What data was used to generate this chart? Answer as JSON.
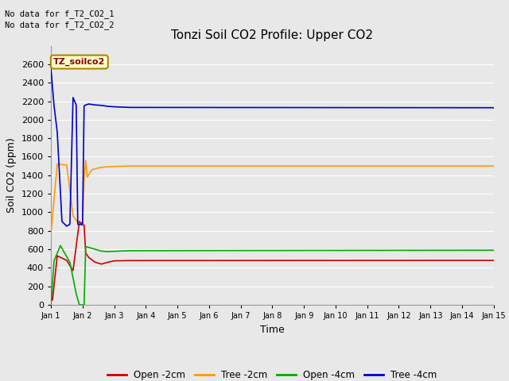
{
  "title": "Tonzi Soil CO2 Profile: Upper CO2",
  "xlabel": "Time",
  "ylabel": "Soil CO2 (ppm)",
  "no_data_text_1": "No data for f_T2_CO2_1",
  "no_data_text_2": "No data for f_T2_CO2_2",
  "annotation_box_text": "TZ_soilco2",
  "annotation_box_color": "#ffffcc",
  "annotation_box_border": "#aa8800",
  "annotation_text_color": "#880000",
  "ylim": [
    0,
    2800
  ],
  "xlim_days": [
    0,
    14
  ],
  "x_tick_labels": [
    "Jan 1",
    "Jan 2",
    "Jan 3",
    "Jan 4",
    "Jan 5",
    "Jan 6",
    "Jan 7",
    "Jan 8",
    "Jan 9",
    "Jan 10",
    "Jan 11",
    "Jan 12",
    "Jan 13",
    "Jan 14",
    "Jan 15"
  ],
  "background_color": "#e8e8e8",
  "plot_bg_color": "#e8e8e8",
  "grid_color": "#ffffff",
  "series": {
    "open_2cm": {
      "color": "#cc0000",
      "label": "Open -2cm",
      "data": [
        [
          0.0,
          100
        ],
        [
          0.05,
          50
        ],
        [
          0.2,
          530
        ],
        [
          0.5,
          480
        ],
        [
          0.7,
          370
        ],
        [
          0.9,
          900
        ],
        [
          1.0,
          870
        ],
        [
          1.05,
          860
        ],
        [
          1.1,
          560
        ],
        [
          1.2,
          510
        ],
        [
          1.4,
          460
        ],
        [
          1.6,
          440
        ],
        [
          1.8,
          460
        ],
        [
          2.0,
          475
        ],
        [
          2.5,
          478
        ],
        [
          14.0,
          480
        ]
      ]
    },
    "tree_2cm": {
      "color": "#ff9900",
      "label": "Tree -2cm",
      "data": [
        [
          0.0,
          760
        ],
        [
          0.2,
          1520
        ],
        [
          0.5,
          1510
        ],
        [
          0.7,
          960
        ],
        [
          0.9,
          870
        ],
        [
          1.0,
          855
        ],
        [
          1.05,
          1360
        ],
        [
          1.1,
          1560
        ],
        [
          1.15,
          1380
        ],
        [
          1.3,
          1460
        ],
        [
          1.5,
          1480
        ],
        [
          1.7,
          1490
        ],
        [
          2.0,
          1495
        ],
        [
          2.5,
          1500
        ],
        [
          14.0,
          1500
        ]
      ]
    },
    "open_4cm": {
      "color": "#00aa00",
      "label": "Open -4cm",
      "data": [
        [
          0.0,
          0
        ],
        [
          0.1,
          475
        ],
        [
          0.3,
          640
        ],
        [
          0.6,
          460
        ],
        [
          0.8,
          120
        ],
        [
          0.9,
          0
        ],
        [
          1.0,
          0
        ],
        [
          1.05,
          0
        ],
        [
          1.1,
          630
        ],
        [
          1.2,
          620
        ],
        [
          1.4,
          600
        ],
        [
          1.6,
          580
        ],
        [
          1.8,
          575
        ],
        [
          2.0,
          578
        ],
        [
          2.5,
          585
        ],
        [
          14.0,
          590
        ]
      ]
    },
    "tree_4cm": {
      "color": "#0000cc",
      "label": "Tree -4cm",
      "data": [
        [
          0.0,
          2560
        ],
        [
          0.1,
          2150
        ],
        [
          0.2,
          1870
        ],
        [
          0.35,
          900
        ],
        [
          0.5,
          850
        ],
        [
          0.6,
          870
        ],
        [
          0.7,
          2240
        ],
        [
          0.75,
          2200
        ],
        [
          0.8,
          2160
        ],
        [
          0.85,
          870
        ],
        [
          0.9,
          870
        ],
        [
          0.95,
          870
        ],
        [
          1.0,
          870
        ],
        [
          1.05,
          2150
        ],
        [
          1.1,
          2160
        ],
        [
          1.2,
          2170
        ],
        [
          1.4,
          2160
        ],
        [
          1.6,
          2155
        ],
        [
          1.8,
          2145
        ],
        [
          2.0,
          2140
        ],
        [
          2.5,
          2133
        ],
        [
          14.0,
          2130
        ]
      ]
    }
  },
  "legend_items": [
    {
      "label": "Open -2cm",
      "color": "#cc0000"
    },
    {
      "label": "Tree -2cm",
      "color": "#ff9900"
    },
    {
      "label": "Open -4cm",
      "color": "#00aa00"
    },
    {
      "label": "Tree -4cm",
      "color": "#0000cc"
    }
  ],
  "yticks": [
    0,
    200,
    400,
    600,
    800,
    1000,
    1200,
    1400,
    1600,
    1800,
    2000,
    2200,
    2400,
    2600
  ]
}
